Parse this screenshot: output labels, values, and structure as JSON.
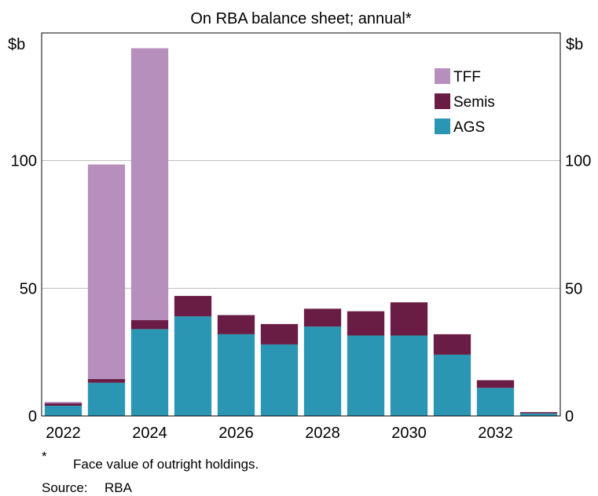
{
  "chart_data": {
    "type": "bar",
    "stacked": true,
    "title": "On RBA balance sheet; annual*",
    "y_unit_left": "$b",
    "y_unit_right": "$b",
    "ylim": [
      0,
      150
    ],
    "yticks": [
      0,
      50,
      100
    ],
    "grid": true,
    "legend_position": "top-right",
    "categories": [
      2022,
      2023,
      2024,
      2025,
      2026,
      2027,
      2028,
      2029,
      2030,
      2031,
      2032,
      2033
    ],
    "x_tick_labels": [
      "2022",
      "2024",
      "2026",
      "2028",
      "2030",
      "2032"
    ],
    "series": [
      {
        "name": "AGS",
        "color": "#2b96b4",
        "values": [
          4,
          13,
          34,
          39,
          32,
          28,
          35,
          31.5,
          31.5,
          24,
          11,
          1
        ]
      },
      {
        "name": "Semis",
        "color": "#6a1d44",
        "values": [
          1,
          1.5,
          3.5,
          8,
          7.5,
          8,
          7,
          9.5,
          13,
          8,
          3,
          0.5
        ]
      },
      {
        "name": "TFF",
        "color": "#b78fbd",
        "values": [
          0.5,
          84,
          106.5,
          0,
          0,
          0,
          0,
          0,
          0,
          0,
          0,
          0
        ]
      }
    ],
    "legend_order": [
      "TFF",
      "Semis",
      "AGS"
    ]
  },
  "footnote": {
    "mark": "*",
    "text": "Face value of outright holdings."
  },
  "source": {
    "label": "Source:",
    "value": "RBA"
  }
}
